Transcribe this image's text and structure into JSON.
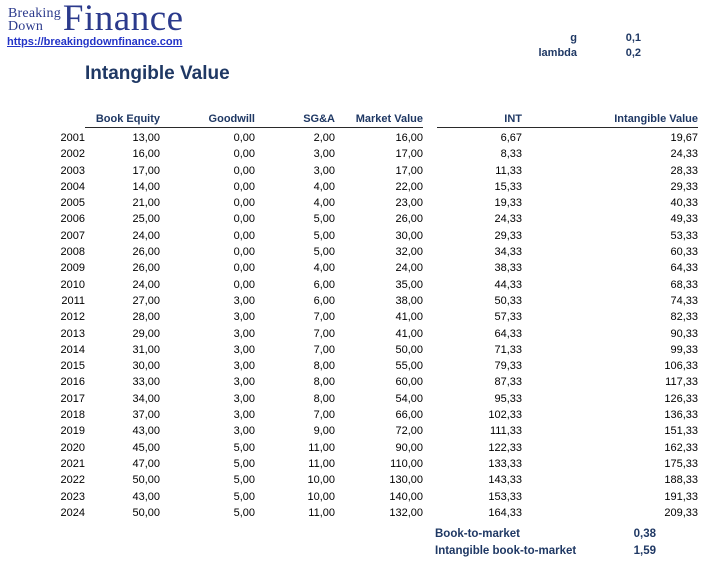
{
  "brand": {
    "stack_top": "Breaking",
    "stack_bottom": "Down",
    "name": "Finance",
    "url": "https://breakingdownfinance.com"
  },
  "title": "Intangible Value",
  "parameters": {
    "g_label": "g",
    "g_value": "0,1",
    "lambda_label": "lambda",
    "lambda_value": "0,2"
  },
  "table": {
    "headers": {
      "year": "",
      "book_equity": "Book Equity",
      "goodwill": "Goodwill",
      "sga": "SG&A",
      "market_value": "Market Value",
      "int": "INT",
      "intangible_value": "Intangible Value"
    },
    "rows": [
      {
        "year": "2001",
        "book_equity": "13,00",
        "goodwill": "0,00",
        "sga": "2,00",
        "market_value": "16,00",
        "int": "6,67",
        "intangible_value": "19,67"
      },
      {
        "year": "2002",
        "book_equity": "16,00",
        "goodwill": "0,00",
        "sga": "3,00",
        "market_value": "17,00",
        "int": "8,33",
        "intangible_value": "24,33"
      },
      {
        "year": "2003",
        "book_equity": "17,00",
        "goodwill": "0,00",
        "sga": "3,00",
        "market_value": "17,00",
        "int": "11,33",
        "intangible_value": "28,33"
      },
      {
        "year": "2004",
        "book_equity": "14,00",
        "goodwill": "0,00",
        "sga": "4,00",
        "market_value": "22,00",
        "int": "15,33",
        "intangible_value": "29,33"
      },
      {
        "year": "2005",
        "book_equity": "21,00",
        "goodwill": "0,00",
        "sga": "4,00",
        "market_value": "23,00",
        "int": "19,33",
        "intangible_value": "40,33"
      },
      {
        "year": "2006",
        "book_equity": "25,00",
        "goodwill": "0,00",
        "sga": "5,00",
        "market_value": "26,00",
        "int": "24,33",
        "intangible_value": "49,33"
      },
      {
        "year": "2007",
        "book_equity": "24,00",
        "goodwill": "0,00",
        "sga": "5,00",
        "market_value": "30,00",
        "int": "29,33",
        "intangible_value": "53,33"
      },
      {
        "year": "2008",
        "book_equity": "26,00",
        "goodwill": "0,00",
        "sga": "5,00",
        "market_value": "32,00",
        "int": "34,33",
        "intangible_value": "60,33"
      },
      {
        "year": "2009",
        "book_equity": "26,00",
        "goodwill": "0,00",
        "sga": "4,00",
        "market_value": "24,00",
        "int": "38,33",
        "intangible_value": "64,33"
      },
      {
        "year": "2010",
        "book_equity": "24,00",
        "goodwill": "0,00",
        "sga": "6,00",
        "market_value": "35,00",
        "int": "44,33",
        "intangible_value": "68,33"
      },
      {
        "year": "2011",
        "book_equity": "27,00",
        "goodwill": "3,00",
        "sga": "6,00",
        "market_value": "38,00",
        "int": "50,33",
        "intangible_value": "74,33"
      },
      {
        "year": "2012",
        "book_equity": "28,00",
        "goodwill": "3,00",
        "sga": "7,00",
        "market_value": "41,00",
        "int": "57,33",
        "intangible_value": "82,33"
      },
      {
        "year": "2013",
        "book_equity": "29,00",
        "goodwill": "3,00",
        "sga": "7,00",
        "market_value": "41,00",
        "int": "64,33",
        "intangible_value": "90,33"
      },
      {
        "year": "2014",
        "book_equity": "31,00",
        "goodwill": "3,00",
        "sga": "7,00",
        "market_value": "50,00",
        "int": "71,33",
        "intangible_value": "99,33"
      },
      {
        "year": "2015",
        "book_equity": "30,00",
        "goodwill": "3,00",
        "sga": "8,00",
        "market_value": "55,00",
        "int": "79,33",
        "intangible_value": "106,33"
      },
      {
        "year": "2016",
        "book_equity": "33,00",
        "goodwill": "3,00",
        "sga": "8,00",
        "market_value": "60,00",
        "int": "87,33",
        "intangible_value": "117,33"
      },
      {
        "year": "2017",
        "book_equity": "34,00",
        "goodwill": "3,00",
        "sga": "8,00",
        "market_value": "54,00",
        "int": "95,33",
        "intangible_value": "126,33"
      },
      {
        "year": "2018",
        "book_equity": "37,00",
        "goodwill": "3,00",
        "sga": "7,00",
        "market_value": "66,00",
        "int": "102,33",
        "intangible_value": "136,33"
      },
      {
        "year": "2019",
        "book_equity": "43,00",
        "goodwill": "3,00",
        "sga": "9,00",
        "market_value": "72,00",
        "int": "111,33",
        "intangible_value": "151,33"
      },
      {
        "year": "2020",
        "book_equity": "45,00",
        "goodwill": "5,00",
        "sga": "11,00",
        "market_value": "90,00",
        "int": "122,33",
        "intangible_value": "162,33"
      },
      {
        "year": "2021",
        "book_equity": "47,00",
        "goodwill": "5,00",
        "sga": "11,00",
        "market_value": "110,00",
        "int": "133,33",
        "intangible_value": "175,33"
      },
      {
        "year": "2022",
        "book_equity": "50,00",
        "goodwill": "5,00",
        "sga": "10,00",
        "market_value": "130,00",
        "int": "143,33",
        "intangible_value": "188,33"
      },
      {
        "year": "2023",
        "book_equity": "43,00",
        "goodwill": "5,00",
        "sga": "10,00",
        "market_value": "140,00",
        "int": "153,33",
        "intangible_value": "191,33"
      },
      {
        "year": "2024",
        "book_equity": "50,00",
        "goodwill": "5,00",
        "sga": "11,00",
        "market_value": "132,00",
        "int": "164,33",
        "intangible_value": "209,33"
      }
    ]
  },
  "summary": {
    "rows": [
      {
        "label": "Book-to-market",
        "value": "0,38"
      },
      {
        "label": "Intangible book-to-market",
        "value": "1,59"
      }
    ]
  },
  "colors": {
    "navy": "#1F3864",
    "link_blue": "#2333C7",
    "text": "#000000"
  }
}
